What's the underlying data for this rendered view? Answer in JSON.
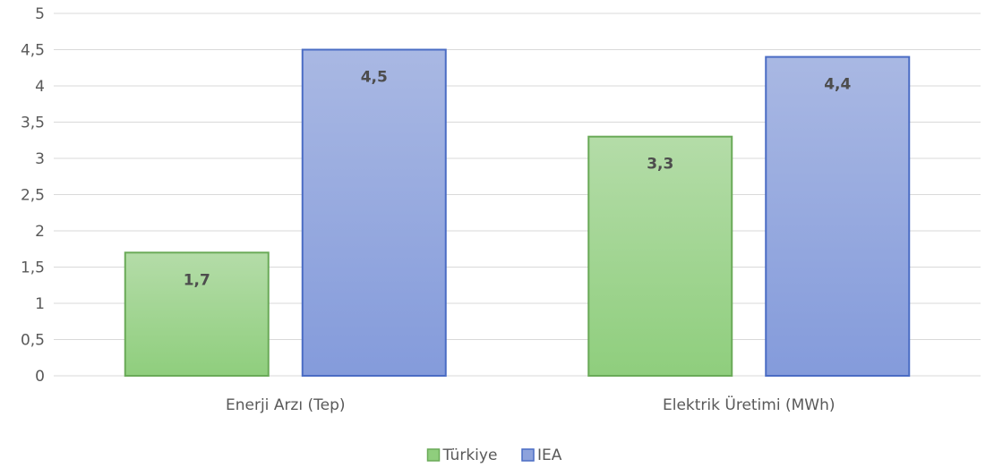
{
  "chart_data": {
    "type": "bar",
    "categories": [
      "Enerji Arzı (Tep)",
      "Elektrik Üretimi (MWh)"
    ],
    "series": [
      {
        "name": "Türkiye",
        "values": [
          1.7,
          3.3
        ],
        "labels": [
          "1,7",
          "3,3"
        ],
        "color": "#8fce7d",
        "edge": "#6aaa58"
      },
      {
        "name": "IEA",
        "values": [
          4.5,
          4.4
        ],
        "labels": [
          "4,5",
          "4,4"
        ],
        "color": "#8da2dc",
        "edge": "#4a6cc4"
      }
    ],
    "ylim": [
      0,
      5
    ],
    "yticks": [
      {
        "value": 0,
        "label": "0"
      },
      {
        "value": 0.5,
        "label": "0,5"
      },
      {
        "value": 1,
        "label": "1"
      },
      {
        "value": 1.5,
        "label": "1,5"
      },
      {
        "value": 2,
        "label": "2"
      },
      {
        "value": 2.5,
        "label": "2,5"
      },
      {
        "value": 3,
        "label": "3"
      },
      {
        "value": 3.5,
        "label": "3,5"
      },
      {
        "value": 4,
        "label": "4"
      },
      {
        "value": 4.5,
        "label": "4,5"
      },
      {
        "value": 5,
        "label": "5"
      }
    ],
    "grid": true,
    "legend": "bottom"
  }
}
